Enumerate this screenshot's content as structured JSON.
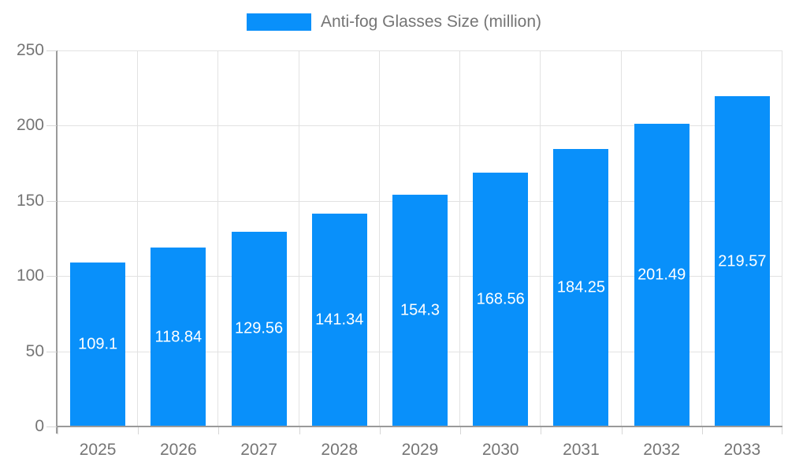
{
  "chart_data": {
    "type": "bar",
    "title": "",
    "xlabel": "",
    "ylabel": "",
    "legend": {
      "label": "Anti-fog Glasses Size (million)",
      "position": "top-center"
    },
    "categories": [
      "2025",
      "2026",
      "2027",
      "2028",
      "2029",
      "2030",
      "2031",
      "2032",
      "2033"
    ],
    "values": [
      109.1,
      118.84,
      129.56,
      141.34,
      154.3,
      168.56,
      184.25,
      201.49,
      219.57
    ],
    "ylim": [
      0,
      250
    ],
    "yticks": [
      0,
      50,
      100,
      150,
      200,
      250
    ],
    "grid": true,
    "grid_vertical": true,
    "bar_value_labels_inside": true,
    "colors": {
      "bar": "#0990fa",
      "label_text": "#ffffff",
      "axis_text": "#757575",
      "axis_line": "#9a9a9a",
      "gridline": "#e2e2e2",
      "tick": "#d6d6d6",
      "background": "#ffffff"
    }
  }
}
